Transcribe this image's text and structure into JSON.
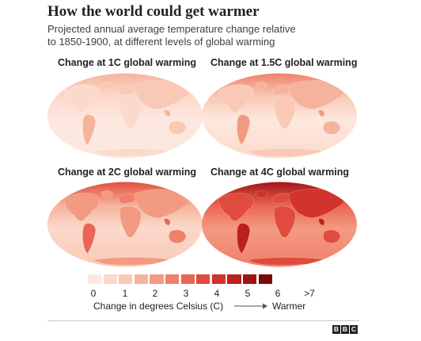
{
  "header": {
    "title": "How the world could get warmer",
    "subtitle_line1": "Projected annual average temperature change relative",
    "subtitle_line2": "to 1850-1900, at different levels of global warming"
  },
  "panels": [
    {
      "title": "Change at 1C global warming"
    },
    {
      "title": "Change at 1.5C global warming"
    },
    {
      "title": "Change at 2C global warming"
    },
    {
      "title": "Change at 4C global warming"
    }
  ],
  "legend": {
    "ticks": [
      "0",
      "1",
      "2",
      "3",
      "4",
      "5",
      "6",
      ">7"
    ],
    "label": "Change in degrees Celsius (C)",
    "arrow_label": "Warmer",
    "colors": [
      "#fde8df",
      "#fbd9cb",
      "#f9c9b5",
      "#f6b39c",
      "#f39a82",
      "#ef8069",
      "#ea6553",
      "#e14a3e",
      "#d2332d",
      "#bd2020",
      "#a11414",
      "#7a0a0a"
    ]
  },
  "branding": {
    "letters": [
      "B",
      "B",
      "C"
    ]
  }
}
